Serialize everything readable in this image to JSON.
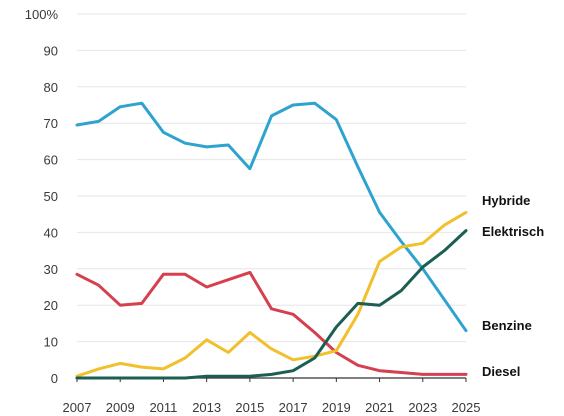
{
  "chart_data": {
    "type": "line",
    "title": "",
    "xlabel": "",
    "ylabel": "",
    "ylim": [
      0,
      100
    ],
    "xlim": [
      2007,
      2025
    ],
    "grid": true,
    "legend": "inline-right",
    "y_ticks": [
      0,
      10,
      20,
      30,
      40,
      50,
      60,
      70,
      80,
      90,
      100
    ],
    "y_tick_labels": [
      "0",
      "10",
      "20",
      "30",
      "40",
      "50",
      "60",
      "70",
      "80",
      "90",
      "100%"
    ],
    "x_ticks": [
      2007,
      2009,
      2011,
      2013,
      2015,
      2017,
      2019,
      2021,
      2023,
      2025
    ],
    "x": [
      2007,
      2008,
      2009,
      2010,
      2011,
      2012,
      2013,
      2014,
      2015,
      2016,
      2017,
      2018,
      2019,
      2020,
      2021,
      2022,
      2023,
      2024,
      2025
    ],
    "series": [
      {
        "name": "Benzine",
        "color": "#2ea3cf",
        "values": [
          69.5,
          70.5,
          74.5,
          75.5,
          67.5,
          64.5,
          63.5,
          64,
          57.5,
          72,
          75,
          75.5,
          71,
          58,
          45.5,
          37.5,
          30,
          21.5,
          13
        ]
      },
      {
        "name": "Diesel",
        "color": "#d6404e",
        "values": [
          28.5,
          25.5,
          20,
          20.5,
          28.5,
          28.5,
          25,
          27,
          29,
          19,
          17.5,
          12.5,
          7,
          3.5,
          2,
          1.5,
          1,
          1,
          1
        ]
      },
      {
        "name": "Hybride",
        "color": "#f2c02c",
        "values": [
          0.5,
          2.5,
          4,
          3,
          2.5,
          5.5,
          10.5,
          7,
          12.5,
          8,
          5,
          6,
          7.5,
          17.5,
          32,
          36,
          37,
          42,
          45.5
        ]
      },
      {
        "name": "Elektrisch",
        "color": "#1b5e52",
        "values": [
          0,
          0,
          0,
          0,
          0,
          0,
          0.5,
          0.5,
          0.5,
          1,
          2,
          5.5,
          14,
          20.5,
          20,
          24,
          30.5,
          35,
          40.5
        ]
      }
    ]
  }
}
